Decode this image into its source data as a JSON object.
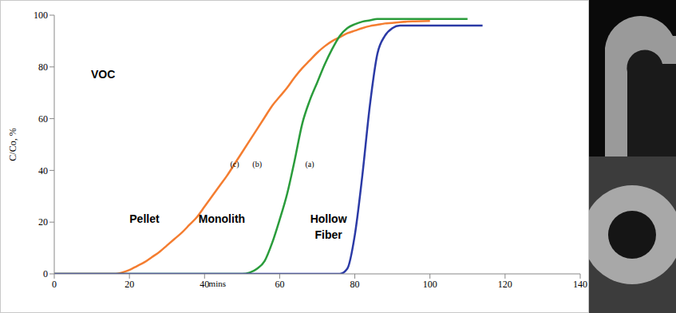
{
  "chart_data": {
    "type": "line",
    "x_label": "mins",
    "y_label": "C/Co, %",
    "annotations": [
      {
        "text": "VOC",
        "x": 13,
        "y": 77
      }
    ],
    "xlim": [
      0,
      140
    ],
    "xticks": [
      0,
      20,
      40,
      60,
      80,
      100,
      120,
      140
    ],
    "ylim": [
      0,
      100
    ],
    "yticks": [
      0,
      20,
      40,
      60,
      80,
      100
    ],
    "grid": false,
    "x": [
      0,
      2,
      4,
      6,
      8,
      10,
      12,
      14,
      16,
      18,
      20,
      22,
      24,
      26,
      28,
      30,
      32,
      34,
      36,
      38,
      40,
      42,
      44,
      46,
      48,
      50,
      52,
      54,
      56,
      58,
      60,
      62,
      64,
      66,
      68,
      70,
      72,
      74,
      76,
      78,
      80,
      82,
      84,
      86,
      88,
      90,
      92,
      94,
      96,
      98,
      100,
      102,
      104,
      106,
      108,
      110,
      112,
      114
    ],
    "series": [
      {
        "name": "Pellet",
        "label": "(c)",
        "name_xy": [
          24,
          21
        ],
        "label_xy": [
          48,
          42
        ],
        "color": "#f47d30",
        "values": [
          0,
          0,
          0,
          0,
          0,
          0,
          0,
          0,
          0,
          0.5,
          1.5,
          3,
          4.5,
          6.5,
          8.5,
          11,
          13.5,
          16,
          19,
          22,
          26,
          30,
          34,
          38,
          42.5,
          47,
          51.5,
          56,
          60.5,
          65,
          68.5,
          72,
          76,
          79.5,
          82.5,
          85.5,
          88,
          90,
          91.5,
          93,
          94,
          95,
          95.8,
          96.3,
          96.8,
          97,
          97.3,
          97.5,
          97.6,
          97.7,
          97.8,
          null,
          null,
          null,
          null,
          null,
          null,
          null
        ]
      },
      {
        "name": "Monolith",
        "label": "(b)",
        "name_xy": [
          44.6,
          21
        ],
        "label_xy": [
          54,
          42
        ],
        "color": "#2a9c3b",
        "values": [
          0,
          0,
          0,
          0,
          0,
          0,
          0,
          0,
          0,
          0,
          0,
          0,
          0,
          0,
          0,
          0,
          0,
          0,
          0,
          0,
          0,
          0,
          0,
          0,
          0,
          0,
          0.5,
          2,
          5,
          12,
          21,
          31,
          44,
          58,
          67,
          74,
          81,
          87,
          92,
          95,
          96.5,
          97.5,
          98,
          98.5,
          98.5,
          98.5,
          98.5,
          98.5,
          98.5,
          98.5,
          98.5,
          98.5,
          98.5,
          98.5,
          98.5,
          98.5,
          null,
          null
        ]
      },
      {
        "name": "Hollow Fiber",
        "label": "(a)",
        "name_xy": [
          73,
          21
        ],
        "label_xy": [
          68,
          42
        ],
        "color": "#2b3aa6",
        "values": [
          0,
          0,
          0,
          0,
          0,
          0,
          0,
          0,
          0,
          0,
          0,
          0,
          0,
          0,
          0,
          0,
          0,
          0,
          0,
          0,
          0,
          0,
          0,
          0,
          0,
          0,
          0,
          0,
          0,
          0,
          0,
          0,
          0,
          0,
          0,
          0,
          0,
          0,
          0,
          2,
          15,
          38,
          65,
          85,
          92,
          95,
          96,
          96,
          96,
          96,
          96,
          96,
          96,
          96,
          96,
          96,
          96,
          96
        ]
      }
    ]
  }
}
